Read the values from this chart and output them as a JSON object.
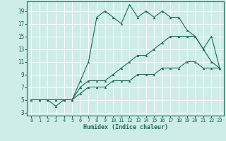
{
  "xlabel": "Humidex (Indice chaleur)",
  "bg_color": "#ceecea",
  "grid_color": "#ffffff",
  "line_color": "#1a6b5a",
  "xlim": [
    -0.5,
    23.5
  ],
  "ylim": [
    2.5,
    20.5
  ],
  "xticks": [
    0,
    1,
    2,
    3,
    4,
    5,
    6,
    7,
    8,
    9,
    10,
    11,
    12,
    13,
    14,
    15,
    16,
    17,
    18,
    19,
    20,
    21,
    22,
    23
  ],
  "yticks": [
    3,
    5,
    7,
    9,
    11,
    13,
    15,
    17,
    19
  ],
  "line1_x": [
    0,
    1,
    2,
    3,
    4,
    5,
    6,
    7,
    8,
    9,
    10,
    11,
    12,
    13,
    14,
    15,
    16,
    17,
    18,
    19,
    20,
    21,
    22,
    23
  ],
  "line1_y": [
    5,
    5,
    5,
    4,
    5,
    5,
    8,
    11,
    18,
    19,
    18,
    17,
    20,
    18,
    19,
    18,
    19,
    18,
    18,
    16,
    15,
    13,
    11,
    10
  ],
  "line2_x": [
    0,
    1,
    2,
    3,
    4,
    5,
    6,
    7,
    8,
    9,
    10,
    11,
    12,
    13,
    14,
    15,
    16,
    17,
    18,
    19,
    20,
    21,
    22,
    23
  ],
  "line2_y": [
    5,
    5,
    5,
    5,
    5,
    5,
    7,
    8,
    8,
    8,
    9,
    10,
    11,
    12,
    12,
    13,
    14,
    15,
    15,
    15,
    15,
    13,
    15,
    10
  ],
  "line3_x": [
    0,
    1,
    2,
    3,
    4,
    5,
    6,
    7,
    8,
    9,
    10,
    11,
    12,
    13,
    14,
    15,
    16,
    17,
    18,
    19,
    20,
    21,
    22,
    23
  ],
  "line3_y": [
    5,
    5,
    5,
    5,
    5,
    5,
    6,
    7,
    7,
    7,
    8,
    8,
    8,
    9,
    9,
    9,
    10,
    10,
    10,
    11,
    11,
    10,
    10,
    10
  ]
}
